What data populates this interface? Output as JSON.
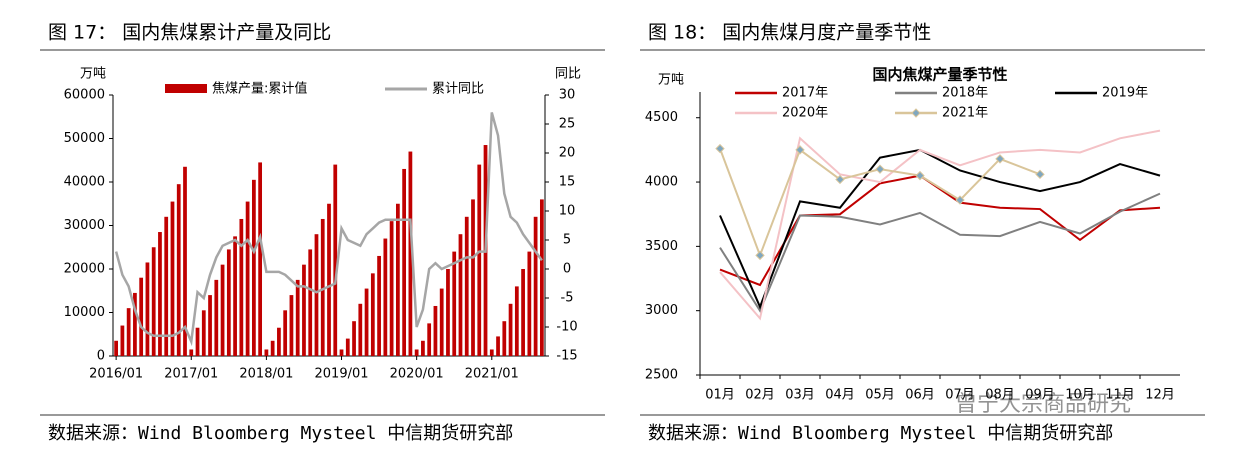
{
  "chart_data": [
    {
      "type": "combo",
      "title": "图 17：  国内焦煤累计产量及同比",
      "y_label": "万吨",
      "y2_label": "同比",
      "categories": [
        "2016/01",
        null,
        null,
        null,
        null,
        null,
        null,
        null,
        null,
        null,
        null,
        null,
        "2017/01",
        null,
        null,
        null,
        null,
        null,
        null,
        null,
        null,
        null,
        null,
        null,
        "2018/01",
        null,
        null,
        null,
        null,
        null,
        null,
        null,
        null,
        null,
        null,
        null,
        "2019/01",
        null,
        null,
        null,
        null,
        null,
        null,
        null,
        null,
        null,
        null,
        null,
        "2020/01",
        null,
        null,
        null,
        null,
        null,
        null,
        null,
        null,
        null,
        null,
        null,
        "2021/01",
        null,
        null,
        null,
        null,
        null,
        null,
        null,
        null
      ],
      "series": [
        {
          "name": "焦煤产量:累计值",
          "color": "#c00000",
          "type": "bar",
          "values": [
            3500,
            7000,
            11000,
            14500,
            18000,
            21500,
            25000,
            28500,
            32000,
            35500,
            39500,
            43500,
            1500,
            6500,
            10500,
            14000,
            17500,
            21000,
            24500,
            27500,
            31500,
            35500,
            40500,
            44500,
            1500,
            3500,
            6500,
            10500,
            14000,
            17500,
            21000,
            24500,
            28000,
            31500,
            35000,
            44000,
            1500,
            4000,
            8000,
            12000,
            15500,
            19000,
            23000,
            27000,
            31000,
            35000,
            43000,
            47000,
            1500,
            3500,
            7500,
            11500,
            15500,
            20000,
            24000,
            28000,
            32000,
            36000,
            44000,
            48500,
            1500,
            4500,
            8000,
            12000,
            16000,
            20000,
            24000,
            32000,
            36000
          ]
        },
        {
          "name": "累计同比",
          "color": "#a6a6a6",
          "type": "line",
          "axis": "y2",
          "values": [
            3,
            -1,
            -3,
            -7,
            -10,
            -11,
            -11.5,
            -11.5,
            -11.5,
            -11.5,
            -11,
            -10,
            -12.5,
            -4,
            -5,
            -1,
            2,
            4,
            4.5,
            5,
            4,
            5,
            3,
            5.5,
            -0.5,
            -0.5,
            -0.5,
            -1,
            -2,
            -3,
            -3,
            -3.5,
            -4,
            -3.5,
            -3,
            -2.5,
            7,
            5,
            4.5,
            4,
            6,
            7,
            8,
            8.5,
            8.5,
            8.5,
            8.5,
            8.5,
            -10,
            -7,
            0,
            1,
            0,
            0.5,
            1,
            1.5,
            2,
            2,
            3,
            3,
            27,
            23,
            13,
            9,
            8,
            6,
            4.5,
            3,
            1.5
          ]
        }
      ],
      "ylim": [
        0,
        60000
      ],
      "yticks": [
        0,
        10000,
        20000,
        30000,
        40000,
        50000,
        60000
      ],
      "y2lim": [
        -15,
        30
      ],
      "y2ticks": [
        -15,
        -10,
        -5,
        0,
        5,
        10,
        15,
        20,
        25,
        30
      ],
      "source": "数据来源：Wind Bloomberg Mysteel 中信期货研究部"
    },
    {
      "type": "line",
      "title": "图 18：  国内焦煤月度产量季节性",
      "subtitle": "国内焦煤产量季节性",
      "y_label": "万吨",
      "categories": [
        "01月",
        "02月",
        "03月",
        "04月",
        "05月",
        "06月",
        "07月",
        "08月",
        "09月",
        "10月",
        "11月",
        "12月"
      ],
      "series": [
        {
          "name": "2017年",
          "color": "#c00000",
          "values": [
            3320,
            3200,
            3740,
            3750,
            3990,
            4050,
            3840,
            3800,
            3790,
            3550,
            3780,
            3800
          ]
        },
        {
          "name": "2018年",
          "color": "#808080",
          "values": [
            3490,
            3000,
            3740,
            3730,
            3670,
            3760,
            3590,
            3580,
            3690,
            3600,
            3770,
            3910
          ]
        },
        {
          "name": "2019年",
          "color": "#000000",
          "values": [
            3740,
            3030,
            3850,
            3800,
            4190,
            4250,
            4090,
            4000,
            3930,
            4000,
            4140,
            4050
          ]
        },
        {
          "name": "2020年",
          "color": "#f4c2c6",
          "values": [
            3300,
            2940,
            4340,
            4060,
            4000,
            4250,
            4130,
            4230,
            4250,
            4230,
            4340,
            4400
          ]
        },
        {
          "name": "2021年",
          "color": "#d9c59a",
          "marker_color": "#7fa7bf",
          "values": [
            4260,
            3430,
            4250,
            4020,
            4100,
            4050,
            3860,
            4180,
            4060,
            null,
            null,
            null
          ]
        }
      ],
      "ylim": [
        2500,
        4700
      ],
      "yticks": [
        2500,
        3000,
        3500,
        4000,
        4500
      ],
      "source": "数据来源：Wind Bloomberg Mysteel 中信期货研究部"
    }
  ],
  "watermark": "曾宁大宗商品研究"
}
